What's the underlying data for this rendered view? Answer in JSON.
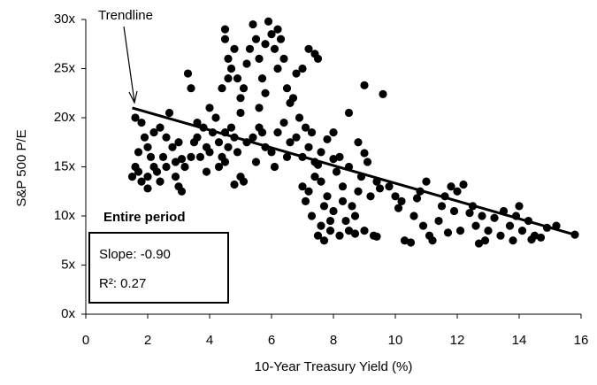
{
  "chart_data": {
    "type": "scatter",
    "xlabel": "10-Year Treasury Yield (%)",
    "ylabel": "S&P 500 P/E",
    "color": "#000000",
    "xlim": [
      0,
      16
    ],
    "xticks": [
      0,
      2,
      4,
      6,
      8,
      10,
      12,
      14,
      16
    ],
    "ylim": [
      0,
      30
    ],
    "yticks": [
      {
        "value": 0,
        "label": "0x"
      },
      {
        "value": 5,
        "label": "5x"
      },
      {
        "value": 10,
        "label": "10x"
      },
      {
        "value": 15,
        "label": "15x"
      },
      {
        "value": 20,
        "label": "20x"
      },
      {
        "value": 25,
        "label": "25x"
      },
      {
        "value": 30,
        "label": "30x"
      }
    ],
    "grid": false,
    "trendline": {
      "label": "Trendline",
      "x": [
        1.5,
        15.9
      ],
      "y": [
        21.0,
        8.0
      ]
    },
    "annotation": {
      "title": "Entire period",
      "slope": "Slope: -0.90",
      "r2": "R²: 0.27"
    },
    "x": [
      1.5,
      1.6,
      1.7,
      1.6,
      1.8,
      1.9,
      2.0,
      2.1,
      2.2,
      1.8,
      2.0,
      2.3,
      2.5,
      2.6,
      2.4,
      2.2,
      2.7,
      2.8,
      2.9,
      3.0,
      3.1,
      2.9,
      2.0,
      2.4,
      1.7,
      2.6,
      3.2,
      3.4,
      3.5,
      3.6,
      3.8,
      3.9,
      4.0,
      4.1,
      4.2,
      4.3,
      4.4,
      4.5,
      4.6,
      4.7,
      4.8,
      4.9,
      5.0,
      3.3,
      3.4,
      3.9,
      4.0,
      3.7,
      3.1,
      4.5,
      4.3,
      3.6,
      3.0,
      5.1,
      4.8,
      4.5,
      4.5,
      4.6,
      4.7,
      4.8,
      4.9,
      5.0,
      5.1,
      5.2,
      5.3,
      5.4,
      5.5,
      5.6,
      5.7,
      5.8,
      5.9,
      6.0,
      6.1,
      6.2,
      6.3,
      6.4,
      6.5,
      6.6,
      6.8,
      7.0,
      7.2,
      7.4,
      7.5,
      6.7,
      5.6,
      4.4,
      5.0,
      6.2,
      5.8,
      4.6,
      5.2,
      5.4,
      5.6,
      5.8,
      6.0,
      6.2,
      6.4,
      6.6,
      6.8,
      7.0,
      7.2,
      7.4,
      7.6,
      5.5,
      6.1,
      6.9,
      7.1,
      5.7,
      6.5,
      7.3,
      8.0,
      8.5,
      8.8,
      9.0,
      9.6,
      7.8,
      7.0,
      7.1,
      7.2,
      7.3,
      7.4,
      7.5,
      7.6,
      7.7,
      7.8,
      7.9,
      8.0,
      8.1,
      8.2,
      8.3,
      8.4,
      8.5,
      8.6,
      8.7,
      8.8,
      8.9,
      9.0,
      9.1,
      9.2,
      9.3,
      9.4,
      9.5,
      7.5,
      8.0,
      7.7,
      8.2,
      9.0,
      7.9,
      8.5,
      9.4,
      7.6,
      8.3,
      8.7,
      9.8,
      10.0,
      10.2,
      10.3,
      10.5,
      10.6,
      10.8,
      11.0,
      11.1,
      11.2,
      11.4,
      11.5,
      11.6,
      11.8,
      11.9,
      12.0,
      12.1,
      12.2,
      10.9,
      10.1,
      11.7,
      10.7,
      12.5,
      12.6,
      12.8,
      12.9,
      13.0,
      13.2,
      13.4,
      13.5,
      13.7,
      13.8,
      14.0,
      14.1,
      14.3,
      14.5,
      14.7,
      14.9,
      15.2,
      15.8,
      12.7,
      13.9,
      14.4,
      12.4
    ],
    "values": [
      14,
      15,
      14.5,
      20,
      19.5,
      18,
      17,
      16,
      15,
      13.5,
      14,
      14.5,
      16,
      18,
      19,
      18.5,
      20.5,
      17,
      15.5,
      13,
      12.5,
      14,
      12.8,
      13.5,
      16.5,
      15,
      15,
      16,
      17.5,
      18,
      19,
      17,
      16.5,
      18.5,
      20,
      17.5,
      16,
      15.5,
      17,
      19,
      18,
      16.5,
      14,
      24.5,
      23,
      14.5,
      21,
      16,
      15.8,
      18.5,
      15,
      19.5,
      17.5,
      13.5,
      13.2,
      29,
      28,
      26,
      25,
      27,
      24,
      22,
      23,
      25.5,
      27,
      29.5,
      28,
      26,
      24,
      22.5,
      29.8,
      28.5,
      27,
      25,
      28,
      26,
      23,
      21.5,
      24.5,
      25,
      27,
      26.5,
      26,
      22,
      21,
      23,
      20.5,
      29,
      27.5,
      24,
      17.5,
      18,
      19,
      17,
      16.5,
      18.5,
      19.5,
      17.5,
      18,
      16,
      17,
      15.5,
      16.5,
      15.5,
      15,
      20,
      19,
      18.5,
      16,
      18.5,
      18.5,
      20.5,
      17.5,
      23.3,
      22.4,
      17.8,
      13,
      11.5,
      12.5,
      10,
      14,
      8,
      9,
      11,
      12,
      8.5,
      10.5,
      14.5,
      8,
      13,
      9.5,
      15,
      11,
      8.2,
      12.5,
      14,
      8.5,
      15.5,
      12,
      8,
      13.5,
      12.8,
      15.2,
      15.8,
      7.5,
      16,
      16.4,
      9.5,
      8.5,
      7.9,
      13.5,
      11.5,
      10,
      13,
      12,
      11.5,
      7.5,
      7.3,
      10,
      12.5,
      13.5,
      8,
      7.5,
      9.5,
      11,
      12,
      13,
      10.5,
      12.5,
      8.5,
      13.2,
      9,
      10.8,
      8.3,
      11.8,
      11,
      9,
      10,
      7.5,
      8.5,
      9.8,
      8,
      10.5,
      9,
      7.5,
      11,
      8.5,
      9.5,
      8,
      7.8,
      8.8,
      9,
      8.1,
      7.2,
      10,
      7.6,
      10.3
    ]
  }
}
